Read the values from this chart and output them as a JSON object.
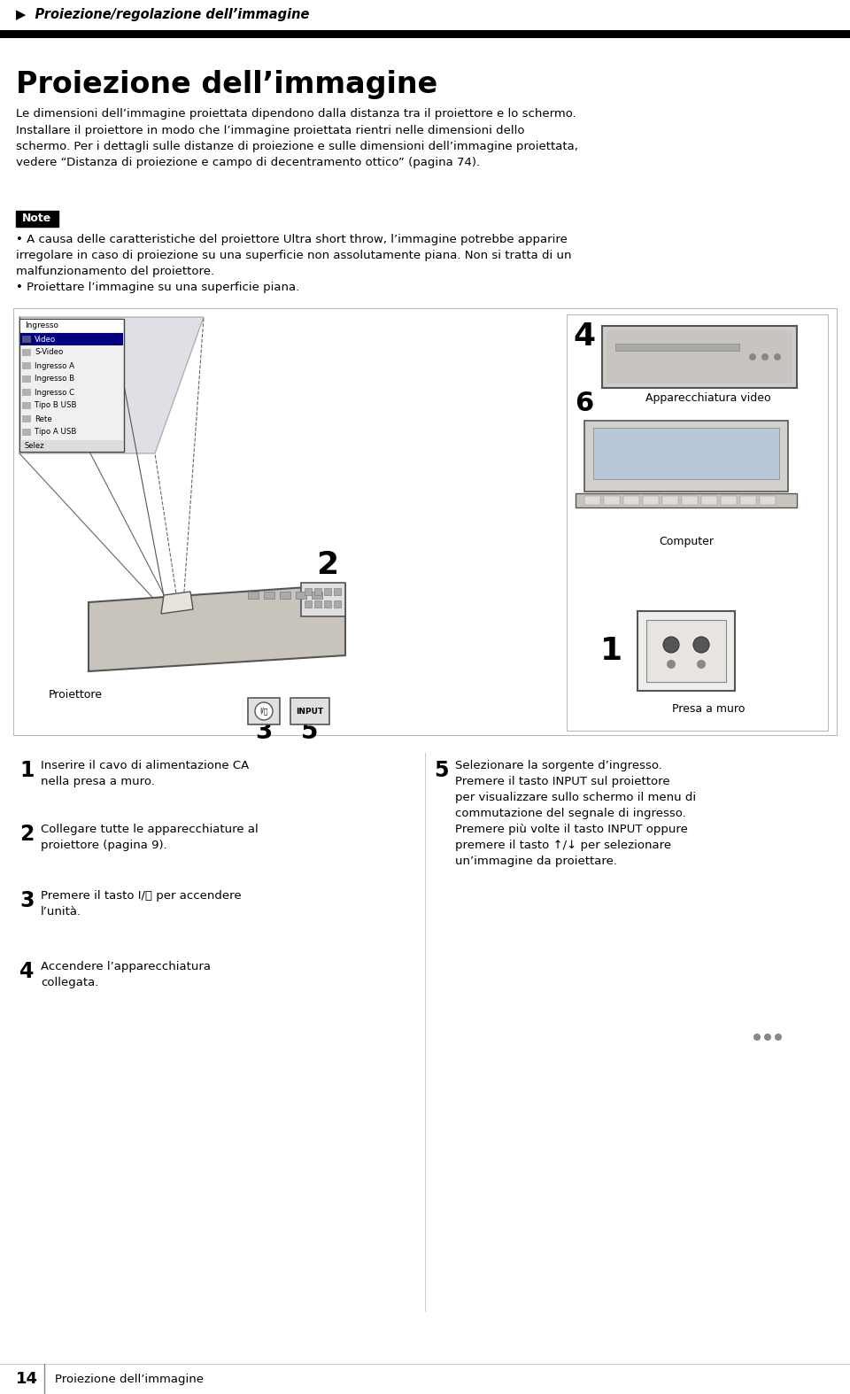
{
  "bg_color": "#ffffff",
  "header_text": "▶  Proiezione/regolazione dell’immagine",
  "title": "Proiezione dell’immagine",
  "body_text": "Le dimensioni dell’immagine proiettata dipendono dalla distanza tra il proiettore e lo schermo.\nInstallare il proiettore in modo che l’immagine proiettata rientri nelle dimensioni dello\nschermo. Per i dettagli sulle distanze di proiezione e sulle dimensioni dell’immagine proiettata,\nvedere “Distanza di proiezione e campo di decentramento ottico” (pagina 74).",
  "note_label": "Note",
  "note_bullets": [
    "A causa delle caratteristiche del proiettore Ultra short throw, l’immagine potrebbe apparire\nirregolare in caso di proiezione su una superficie non assolutamente piana. Non si tratta di un\nmalfunzionamento del proiettore.",
    "Proiettare l’immagine su una superficie piana."
  ],
  "steps": [
    {
      "num": "1",
      "text": "Inserire il cavo di alimentazione CA\nnella presa a muro."
    },
    {
      "num": "2",
      "text": "Collegare tutte le apparecchiature al\nproiettore (pagina 9)."
    },
    {
      "num": "3",
      "text": "Premere il tasto I/⏻ per accendere\nl’unità."
    },
    {
      "num": "4",
      "text": "Accendere l’apparecchiatura\ncollegata."
    },
    {
      "num": "5",
      "text": "Selezionare la sorgente d’ingresso.\nPremere il tasto INPUT sul proiettore\nper visualizzare sullo schermo il menu di\ncommutazione del segnale di ingresso.\nPremere più volte il tasto INPUT oppure\npremere il tasto ↑/↓ per selezionare\nun’immagine da proiettare."
    }
  ],
  "diagram_labels": {
    "menu_label": "Ingresso",
    "menu_items": [
      "Video",
      "S-Video",
      "Ingresso A",
      "Ingresso B",
      "Ingresso C",
      "Tipo B USB",
      "Rete",
      "Tipo A USB"
    ],
    "menu_bottom": "Selez",
    "num4": "4",
    "num6": "6",
    "num2": "2",
    "num1": "1",
    "num3": "3",
    "num5": "5",
    "label_video": "Apparecchiatura video",
    "label_computer": "Computer",
    "label_proiettore": "Proiettore",
    "label_presa": "Presa a muro"
  },
  "footer_num": "14",
  "footer_text": "Proiezione dell’immagine"
}
